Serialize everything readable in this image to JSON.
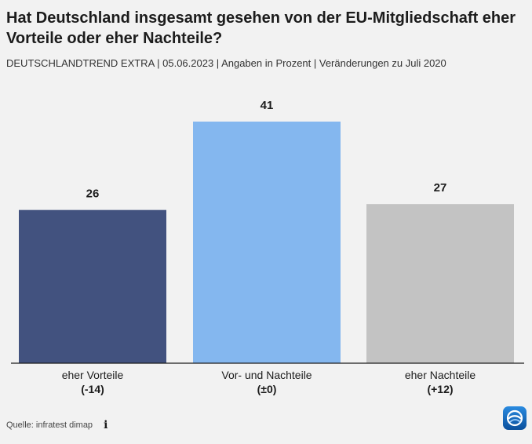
{
  "header": {
    "title": "Hat Deutschland insgesamt gesehen von der EU-Mitgliedschaft eher Vorteile oder eher Nachteile?",
    "subtitle": "DEUTSCHLANDTREND EXTRA | 05.06.2023 | Angaben in Prozent | Veränderungen zu Juli 2020"
  },
  "chart_data": {
    "type": "bar",
    "title": "Hat Deutschland insgesamt gesehen von der EU-Mitgliedschaft eher Vorteile oder eher Nachteile?",
    "xlabel": "",
    "ylabel": "",
    "ylim": [
      0,
      41
    ],
    "grid": false,
    "categories": [
      "eher Vorteile",
      "Vor- und Nachteile",
      "eher Nachteile"
    ],
    "values": [
      26,
      41,
      27
    ],
    "changes": [
      "(-14)",
      "(±0)",
      "(+12)"
    ],
    "colors": [
      "#42527f",
      "#84b7ef",
      "#c3c3c3"
    ]
  },
  "footer": {
    "source": "Quelle: infratest dimap",
    "info_icon": "info-icon",
    "logo_icon": "tagesschau-logo-icon"
  }
}
